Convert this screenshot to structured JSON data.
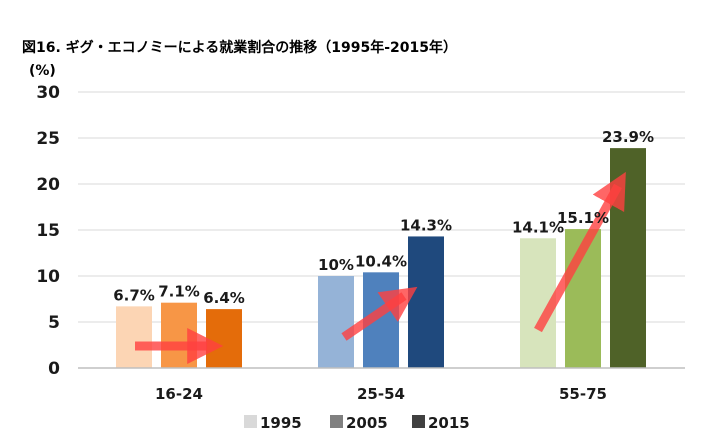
{
  "chart_data": {
    "type": "bar",
    "title": "図16. ギグ・エコノミーによる就業割合の推移（1995年-2015年）",
    "ylabel": "(%)",
    "xlabel": "",
    "ylim": [
      0,
      30
    ],
    "yticks": [
      0,
      5,
      10,
      15,
      20,
      25,
      30
    ],
    "grid": true,
    "legend_position": "bottom",
    "categories": [
      "16-24",
      "25-54",
      "55-75"
    ],
    "series": [
      {
        "name": "1995",
        "values": [
          6.7,
          10,
          14.1
        ],
        "labels": [
          "6.7%",
          "10%",
          "14.1%"
        ]
      },
      {
        "name": "2005",
        "values": [
          7.1,
          10.4,
          15.1
        ],
        "labels": [
          "7.1%",
          "10.4%",
          "15.1%"
        ]
      },
      {
        "name": "2015",
        "values": [
          6.4,
          14.3,
          23.9
        ],
        "labels": [
          "6.4%",
          "14.3%",
          "23.9%"
        ]
      }
    ],
    "bar_colors": [
      [
        "#fcd5b4",
        "#f79646",
        "#e46c0a"
      ],
      [
        "#95b3d7",
        "#4f81bd",
        "#1f497d"
      ],
      [
        "#d7e4bc",
        "#9bbb59",
        "#4f6228"
      ]
    ],
    "legend_colors": [
      "#d9d9d9",
      "#808080",
      "#404040"
    ],
    "arrow_color": "#ff4040"
  }
}
